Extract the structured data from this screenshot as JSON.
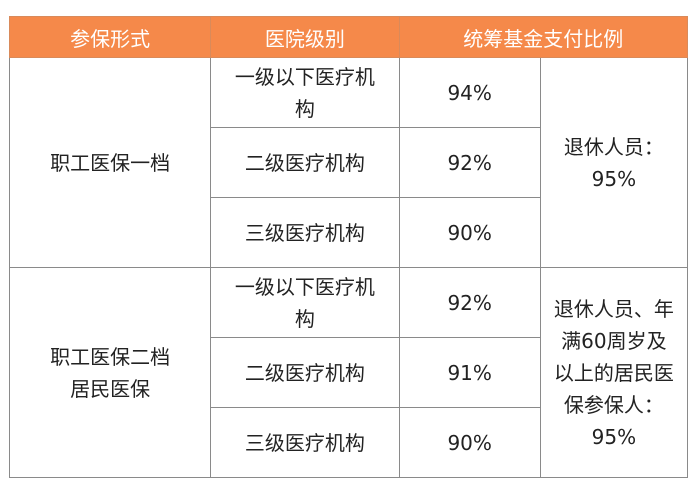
{
  "headers": [
    "参保形式",
    "医院级别",
    "统筹基金支付比例"
  ],
  "groups": [
    {
      "type": "职工医保一档",
      "rows": [
        {
          "level": "一级以下医疗机构",
          "ratio": "94%"
        },
        {
          "level": "二级医疗机构",
          "ratio": "92%"
        },
        {
          "level": "三级医疗机构",
          "ratio": "90%"
        }
      ],
      "note": "退休人员：95%"
    },
    {
      "type_line1": "职工医保二档",
      "type_line2": "居民医保",
      "rows": [
        {
          "level": "一级以下医疗机构",
          "ratio": "92%"
        },
        {
          "level": "二级医疗机构",
          "ratio": "91%"
        },
        {
          "level": "三级医疗机构",
          "ratio": "90%"
        }
      ],
      "note": "退休人员、年满60周岁及以上的居民医保参保人：95%"
    }
  ],
  "colors": {
    "header_bg": "#f5894a",
    "header_text": "#ffffff",
    "border": "#8a8a8a"
  }
}
